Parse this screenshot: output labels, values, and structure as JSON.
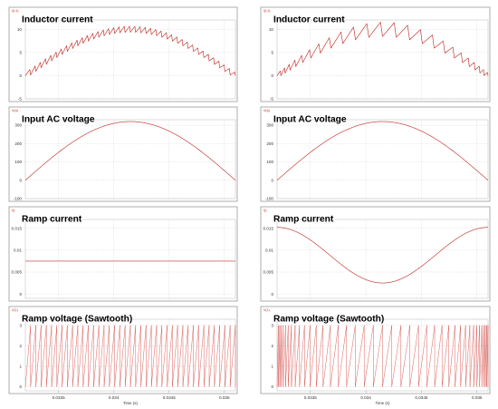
{
  "colors": {
    "trace": "#c0312b",
    "panel_border": "#9a9a9a",
    "grid": "#c8c8c8"
  },
  "chart_data": [
    {
      "type": "line",
      "column": "left",
      "row": 0,
      "title": "Inductor current",
      "unit_label": "I(L1)",
      "ylim": [
        -5,
        12
      ],
      "yticks": [
        "10",
        "5",
        "0",
        "-5"
      ],
      "ytick_values": [
        10,
        5,
        0,
        -5
      ],
      "series": [
        {
          "kind": "sine_ripple",
          "peak": 10.0,
          "ripple": 1.3,
          "teeth": 40
        }
      ]
    },
    {
      "type": "line",
      "column": "left",
      "row": 1,
      "title": "Input AC voltage",
      "unit_label": "V(a)",
      "ylim": [
        -100,
        330
      ],
      "yticks": [
        "300",
        "200",
        "100",
        "0",
        "-100"
      ],
      "ytick_values": [
        300,
        200,
        100,
        0,
        -100
      ],
      "series": [
        {
          "kind": "sine",
          "peak": 320
        }
      ]
    },
    {
      "type": "line",
      "column": "left",
      "row": 2,
      "title": "Ramp current",
      "unit_label": "I()",
      "ylim": [
        -0.001,
        0.017
      ],
      "yticks": [
        "0.015",
        "0.01",
        "0.005",
        "0"
      ],
      "ytick_values": [
        0.015,
        0.01,
        0.005,
        0
      ],
      "series": [
        {
          "kind": "constant",
          "value": 0.0075
        }
      ]
    },
    {
      "type": "line",
      "column": "left",
      "row": 3,
      "title": "Ramp voltage (Sawtooth)",
      "unit_label": "V(1)",
      "ylim": [
        -0.2,
        3.3
      ],
      "yticks": [
        "3",
        "2",
        "1",
        "0"
      ],
      "ytick_values": [
        3,
        2,
        1,
        0
      ],
      "series": [
        {
          "kind": "sawtooth_const",
          "peak": 3.0,
          "teeth": 40
        }
      ]
    },
    {
      "type": "line",
      "column": "right",
      "row": 0,
      "title": "Inductor current",
      "unit_label": "I(L1)",
      "ylim": [
        -5,
        12
      ],
      "yticks": [
        "10",
        "5",
        "0",
        "-5"
      ],
      "ytick_values": [
        10,
        5,
        0,
        -5
      ],
      "series": [
        {
          "kind": "sine_ripple_var",
          "peak": 10.0,
          "ripple": 2.6,
          "teeth": 24
        }
      ]
    },
    {
      "type": "line",
      "column": "right",
      "row": 1,
      "title": "Input AC voltage",
      "unit_label": "V(a)",
      "ylim": [
        -100,
        330
      ],
      "yticks": [
        "300",
        "200",
        "100",
        "0",
        "-100"
      ],
      "ytick_values": [
        300,
        200,
        100,
        0,
        -100
      ],
      "series": [
        {
          "kind": "sine",
          "peak": 320
        }
      ]
    },
    {
      "type": "line",
      "column": "right",
      "row": 2,
      "title": "Ramp current",
      "unit_label": "I()",
      "ylim": [
        -0.001,
        0.017
      ],
      "yticks": [
        "0.015",
        "0.01",
        "0.005",
        "0"
      ],
      "ytick_values": [
        0.015,
        0.01,
        0.005,
        0
      ],
      "series": [
        {
          "kind": "cosine_dip",
          "max": 0.0152,
          "min": 0.0025
        }
      ]
    },
    {
      "type": "line",
      "column": "right",
      "row": 3,
      "title": "Ramp voltage (Sawtooth)",
      "unit_label": "V(1)",
      "ylim": [
        -0.2,
        3.3
      ],
      "yticks": [
        "3",
        "2",
        "1",
        "0"
      ],
      "ytick_values": [
        3,
        2,
        1,
        0
      ],
      "series": [
        {
          "kind": "sawtooth_var",
          "peak": 3.0,
          "teeth": 40
        }
      ]
    }
  ],
  "x_axis": {
    "range": [
      0.0532,
      0.0351
    ],
    "ticks": [
      "0.0335",
      "0.034",
      "0.0345",
      "0.035"
    ],
    "tick_values": [
      0.0335,
      0.034,
      0.0345,
      0.035
    ],
    "title": "Time (s)"
  }
}
